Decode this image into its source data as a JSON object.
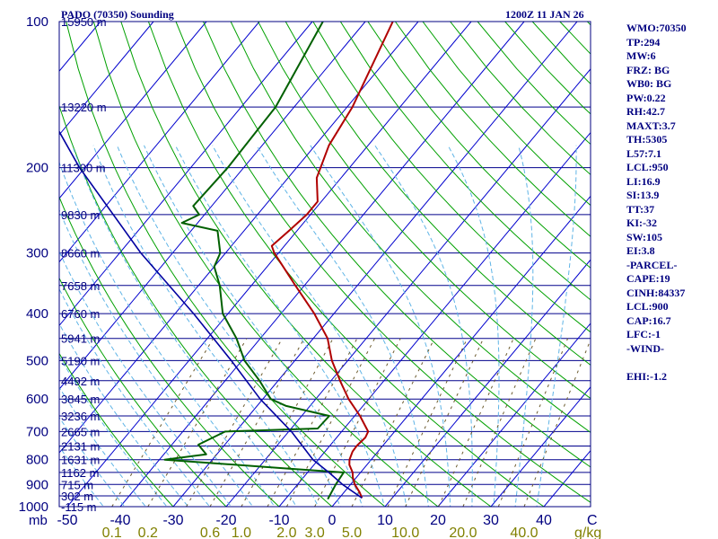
{
  "header": {
    "title": "PADO (70350) Sounding",
    "time": "1200Z 11 JAN 26"
  },
  "colors": {
    "frame": "#000080",
    "isobar": "#00008b",
    "isotherm": "#0000cd",
    "dry_adiabat": "#00a000",
    "moist_adiabat": "#5fb4e6",
    "mixing_ratio": "#6b5a2e",
    "temperature": "#b00000",
    "dewpoint": "#006000",
    "parcel": "#0000a0",
    "label_text": "#000080",
    "mixing_label": "#808000"
  },
  "chart_data": {
    "type": "line",
    "title": "PADO (70350) Sounding",
    "subtitle": "1200Z 11 JAN 26",
    "xlabel": "°C",
    "ylabel": "mb",
    "xlim": [
      -50,
      50
    ],
    "ylim": [
      1000,
      100
    ],
    "pressure_ticks": [
      100,
      200,
      300,
      400,
      500,
      600,
      700,
      800,
      900,
      1000
    ],
    "axis_unit_left": "mb",
    "axis_unit_right": "C",
    "temp_ticks": [
      -50,
      -40,
      -30,
      -20,
      -10,
      0,
      10,
      20,
      30,
      40
    ],
    "mixing_ratio_labels": [
      "0.1",
      "0.2",
      "0.6",
      "1.0",
      "2.0",
      "3.0",
      "5.0",
      "10.0",
      "20.0",
      "40.0"
    ],
    "mixing_ratio_values": [
      0.1,
      0.2,
      0.6,
      1.0,
      2.0,
      3.0,
      5.0,
      10.0,
      20.0,
      40.0
    ],
    "mixing_ratio_unit": "g/kg",
    "height_labels": [
      {
        "p": 100,
        "label": "15950 m"
      },
      {
        "p": 150,
        "label": "13220 m"
      },
      {
        "p": 200,
        "label": "11300 m"
      },
      {
        "p": 250,
        "label": "9830 m"
      },
      {
        "p": 300,
        "label": "8660 m"
      },
      {
        "p": 350,
        "label": "7658 m"
      },
      {
        "p": 400,
        "label": "6760 m"
      },
      {
        "p": 450,
        "label": "5941 m"
      },
      {
        "p": 500,
        "label": "5190 m"
      },
      {
        "p": 550,
        "label": "4492 m"
      },
      {
        "p": 600,
        "label": "3845 m"
      },
      {
        "p": 650,
        "label": "3236 m"
      },
      {
        "p": 700,
        "label": "2665 m"
      },
      {
        "p": 750,
        "label": "2131 m"
      },
      {
        "p": 800,
        "label": "1631 m"
      },
      {
        "p": 850,
        "label": "1162 m"
      },
      {
        "p": 900,
        "label": "715 m"
      },
      {
        "p": 950,
        "label": "302 m"
      },
      {
        "p": 1000,
        "label": "-115 m"
      }
    ],
    "series": [
      {
        "name": "Temperature",
        "points": [
          {
            "p": 960,
            "t": 4.3
          },
          {
            "p": 935,
            "t": 3.0
          },
          {
            "p": 900,
            "t": 0.8
          },
          {
            "p": 870,
            "t": -0.7
          },
          {
            "p": 850,
            "t": -1.5
          },
          {
            "p": 820,
            "t": -3.3
          },
          {
            "p": 800,
            "t": -4.1
          },
          {
            "p": 770,
            "t": -4.8
          },
          {
            "p": 750,
            "t": -4.9
          },
          {
            "p": 720,
            "t": -4.6
          },
          {
            "p": 700,
            "t": -5.0
          },
          {
            "p": 650,
            "t": -9.0
          },
          {
            "p": 600,
            "t": -13.8
          },
          {
            "p": 550,
            "t": -18.3
          },
          {
            "p": 500,
            "t": -23.0
          },
          {
            "p": 450,
            "t": -27.3
          },
          {
            "p": 400,
            "t": -33.7
          },
          {
            "p": 350,
            "t": -41.7
          },
          {
            "p": 300,
            "t": -50.8
          },
          {
            "p": 290,
            "t": -52.4
          },
          {
            "p": 270,
            "t": -51.5
          },
          {
            "p": 250,
            "t": -50.7
          },
          {
            "p": 235,
            "t": -50.7
          },
          {
            "p": 210,
            "t": -54.6
          },
          {
            "p": 180,
            "t": -57.4
          },
          {
            "p": 150,
            "t": -59.0
          },
          {
            "p": 100,
            "t": -64.8
          }
        ]
      },
      {
        "name": "Dewpoint",
        "points": [
          {
            "p": 965,
            "t": -2.0
          },
          {
            "p": 900,
            "t": -2.8
          },
          {
            "p": 850,
            "t": -3.2
          },
          {
            "p": 835,
            "t": -14.0
          },
          {
            "p": 800,
            "t": -39.0
          },
          {
            "p": 780,
            "t": -32.0
          },
          {
            "p": 745,
            "t": -35.0
          },
          {
            "p": 700,
            "t": -32.0
          },
          {
            "p": 690,
            "t": -15.0
          },
          {
            "p": 650,
            "t": -14.8
          },
          {
            "p": 620,
            "t": -24.5
          },
          {
            "p": 600,
            "t": -28.5
          },
          {
            "p": 550,
            "t": -33.5
          },
          {
            "p": 500,
            "t": -39.5
          },
          {
            "p": 450,
            "t": -44.5
          },
          {
            "p": 400,
            "t": -51.0
          },
          {
            "p": 350,
            "t": -56.0
          },
          {
            "p": 320,
            "t": -60.0
          },
          {
            "p": 300,
            "t": -61.0
          },
          {
            "p": 270,
            "t": -65.0
          },
          {
            "p": 260,
            "t": -73.0
          },
          {
            "p": 250,
            "t": -71.0
          },
          {
            "p": 240,
            "t": -73.5
          },
          {
            "p": 200,
            "t": -73.0
          },
          {
            "p": 150,
            "t": -73.5
          },
          {
            "p": 100,
            "t": -78.0
          }
        ]
      },
      {
        "name": "Parcel",
        "points": [
          {
            "p": 960,
            "t": 4.3
          },
          {
            "p": 900,
            "t": -1.5
          },
          {
            "p": 850,
            "t": -6.0
          },
          {
            "p": 800,
            "t": -11.0
          },
          {
            "p": 700,
            "t": -19.5
          },
          {
            "p": 600,
            "t": -30.5
          },
          {
            "p": 500,
            "t": -42.0
          },
          {
            "p": 400,
            "t": -56.5
          },
          {
            "p": 300,
            "t": -76.0
          },
          {
            "p": 200,
            "t": -101.0
          },
          {
            "p": 150,
            "t": -117.0
          },
          {
            "p": 110,
            "t": -134.0
          }
        ]
      }
    ]
  },
  "stats": [
    "WMO:70350",
    "TP:294",
    "MW:6",
    "FRZ: BG",
    "WB0: BG",
    "PW:0.22",
    "RH:42.7",
    "MAXT:3.7",
    "TH:5305",
    "L57:7.1",
    "LCL:950",
    "LI:16.9",
    "SI:13.9",
    "TT:37",
    "KI:-32",
    "SW:105",
    "EI:3.8",
    "-PARCEL-",
    "CAPE:19",
    "CINH:84337",
    "LCL:900",
    "CAP:16.7",
    "LFC:-1",
    "-WIND-",
    "",
    "EHI:-1.2"
  ]
}
